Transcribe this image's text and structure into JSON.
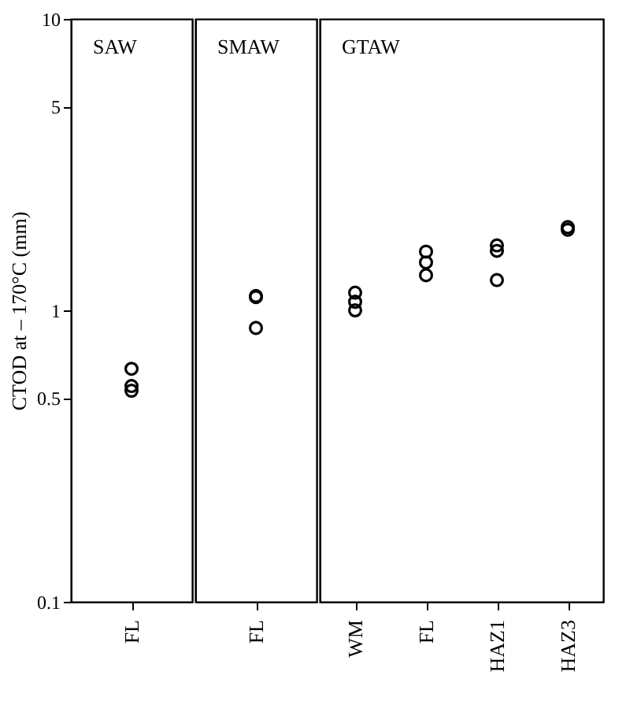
{
  "chart_data": [
    {
      "type": "scatter",
      "title": "SAW",
      "ylabel": "CTOD at – 170°C (mm)",
      "categories": [
        "FL"
      ],
      "log": true,
      "ylim": [
        0.1,
        10
      ],
      "yticks": [
        0.1,
        0.5,
        1,
        5,
        10
      ],
      "grid": false,
      "marker": "circle",
      "series": [
        {
          "color": "#000000",
          "x": [
            "FL",
            "FL",
            "FL"
          ],
          "values": [
            0.63,
            0.55,
            0.53
          ]
        }
      ]
    },
    {
      "type": "scatter",
      "title": "SMAW",
      "categories": [
        "FL"
      ],
      "log": true,
      "ylim": [
        0.1,
        10
      ],
      "yticks": [
        0.1,
        0.5,
        1,
        5,
        10
      ],
      "grid": false,
      "marker": "circle",
      "tick_labels": "x",
      "series": [
        {
          "color": "#000000",
          "x": [
            "FL",
            "FL",
            "FL"
          ],
          "values": [
            1.12,
            1.11,
            0.87
          ]
        }
      ]
    },
    {
      "type": "scatter",
      "title": "GTAW",
      "categories": [
        "WM",
        "FL",
        "HAZ1",
        "HAZ3"
      ],
      "log": true,
      "ylim": [
        0.1,
        10
      ],
      "yticks": [
        0.1,
        0.5,
        1,
        5,
        10
      ],
      "grid": false,
      "marker": "circle",
      "tick_labels": "x",
      "series": [
        {
          "color": "#000000",
          "x": [
            "WM",
            "WM",
            "WM",
            "FL",
            "FL",
            "FL",
            "HAZ1",
            "HAZ1",
            "HAZ1",
            "HAZ3",
            "HAZ3"
          ],
          "values": [
            1.15,
            1.07,
            1.0,
            1.59,
            1.46,
            1.32,
            1.67,
            1.6,
            1.27,
            1.93,
            1.89
          ]
        }
      ]
    }
  ]
}
